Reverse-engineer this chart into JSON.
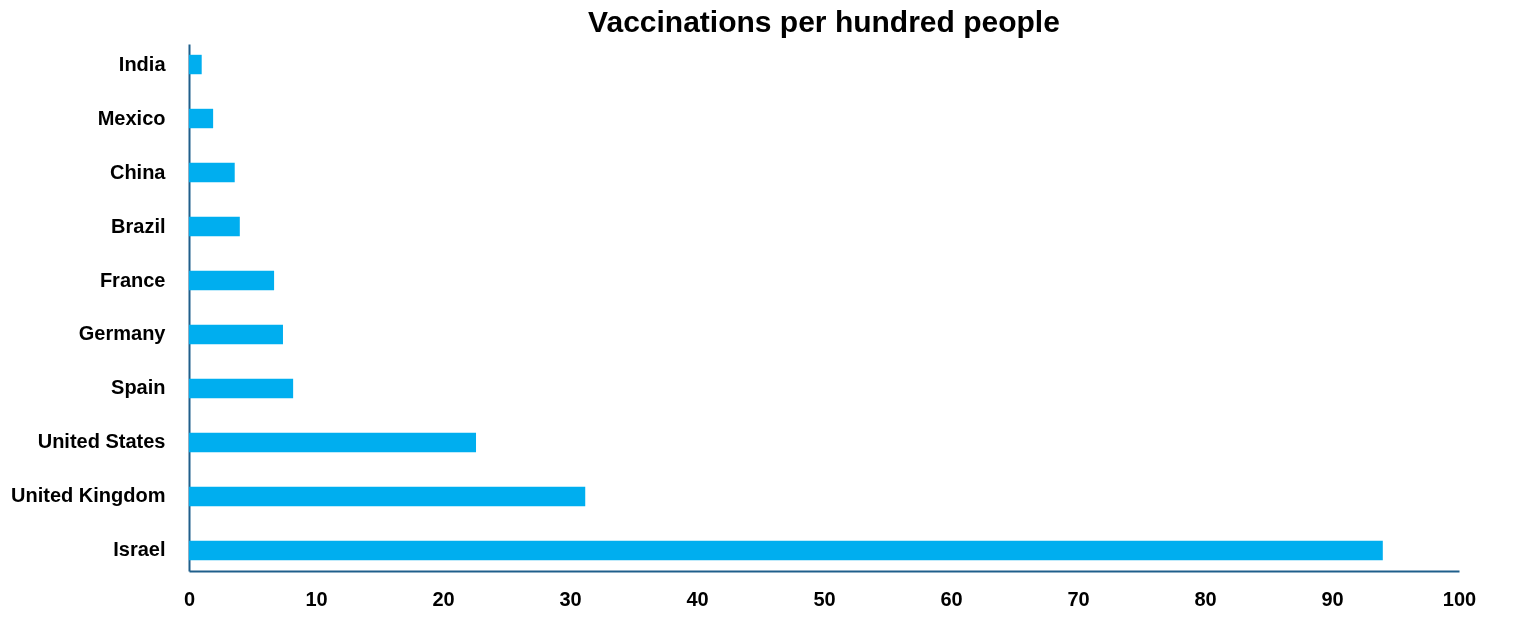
{
  "chart_data": {
    "type": "bar",
    "orientation": "horizontal",
    "title": "Vaccinations per hundred people",
    "categories": [
      "India",
      "Mexico",
      "China",
      "Brazil",
      "France",
      "Germany",
      "Spain",
      "United States",
      "United Kingdom",
      "Israel"
    ],
    "values": [
      1.0,
      1.9,
      3.6,
      4.0,
      6.7,
      7.4,
      8.2,
      22.6,
      31.2,
      94.0
    ],
    "color": "#00aeef",
    "xlim": [
      0,
      100
    ],
    "xticks": [
      0,
      10,
      20,
      30,
      40,
      50,
      60,
      70,
      80,
      90,
      100
    ],
    "grid": false
  }
}
